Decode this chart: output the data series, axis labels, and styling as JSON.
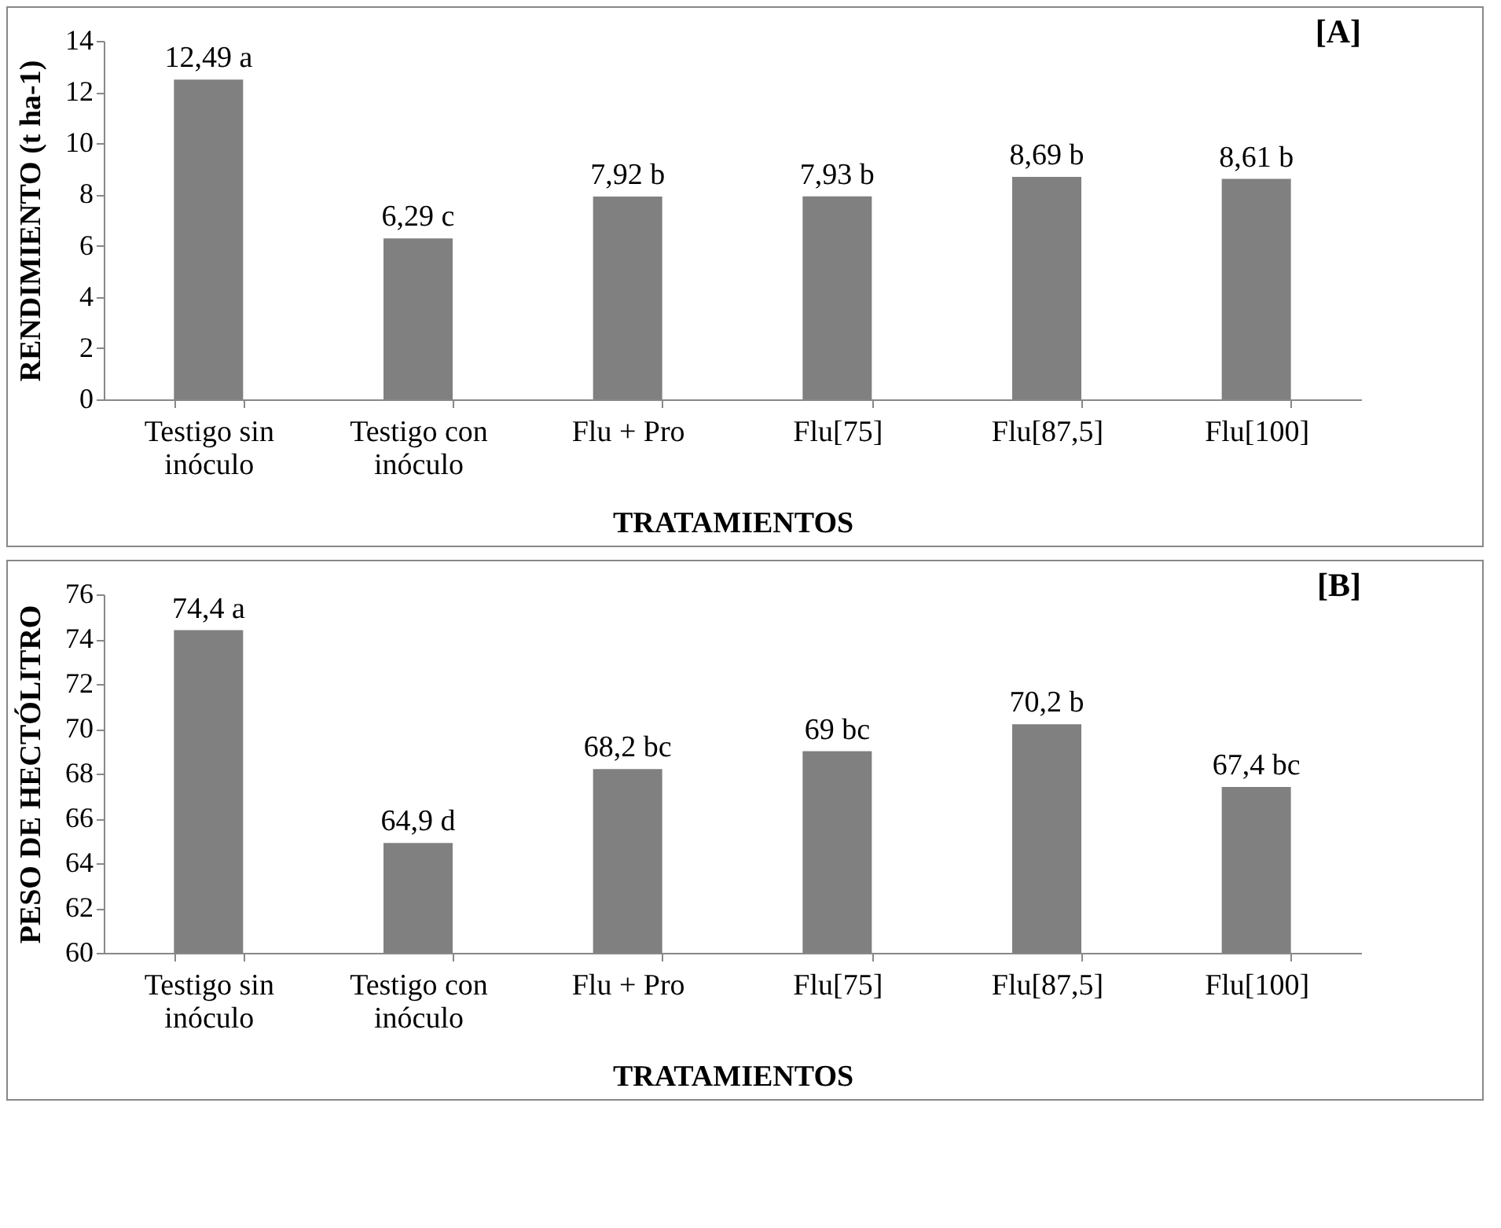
{
  "chart_data": [
    {
      "type": "bar",
      "categories": [
        "Testigo sin inóculo",
        "Testigo con inóculo",
        "Flu + Pro",
        "Flu[75]",
        "Flu[87,5]",
        "Flu[100]"
      ],
      "values": [
        12.49,
        6.29,
        7.92,
        7.93,
        8.69,
        8.61
      ],
      "value_labels": [
        "12,49 a",
        "6,29 c",
        "7,92 b",
        "7,93 b",
        "8,69 b",
        "8,61 b"
      ],
      "color": "#808080",
      "ylim": [
        0,
        14
      ],
      "yticks": [
        0,
        2,
        4,
        6,
        8,
        10,
        12,
        14
      ],
      "xlabel": "TRATAMIENTOS",
      "ylabel": "RENDIMIENTO (t ha-1)",
      "annotations": [
        "[A]"
      ],
      "grid": false
    },
    {
      "type": "bar",
      "categories": [
        "Testigo sin inóculo",
        "Testigo con inóculo",
        "Flu + Pro",
        "Flu[75]",
        "Flu[87,5]",
        "Flu[100]"
      ],
      "values": [
        74.4,
        64.9,
        68.2,
        69,
        70.2,
        67.4
      ],
      "value_labels": [
        "74,4 a",
        "64,9 d",
        "68,2 bc",
        "69 bc",
        "70,2 b",
        "67,4 bc"
      ],
      "color": "#808080",
      "ylim": [
        60,
        76
      ],
      "yticks": [
        60,
        62,
        64,
        66,
        68,
        70,
        72,
        74,
        76
      ],
      "xlabel": "TRATAMIENTOS",
      "ylabel": "PESO DE HECTÓLITRO",
      "annotations": [
        "[B]"
      ],
      "grid": false
    }
  ]
}
